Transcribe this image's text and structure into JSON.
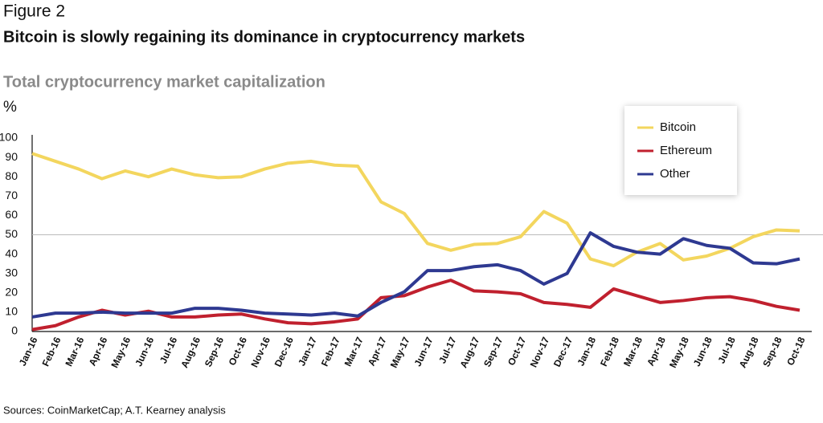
{
  "chart_data": {
    "type": "line",
    "figure_label": "Figure 2",
    "title": "Bitcoin is slowly regaining its dominance in cryptocurrency markets",
    "subtitle": "Total cryptocurrency market capitalization",
    "y_unit": "%",
    "source": "Sources: CoinMarketCap; A.T. Kearney analysis",
    "categories": [
      "Jan-16",
      "Feb-16",
      "Mar-16",
      "Apr-16",
      "May-16",
      "Jun-16",
      "Jul-16",
      "Aug-16",
      "Sep-16",
      "Oct-16",
      "Nov-16",
      "Dec-16",
      "Jan-17",
      "Feb-17",
      "Mar-17",
      "Apr-17",
      "May-17",
      "Jun-17",
      "Jul-17",
      "Aug-17",
      "Sep-17",
      "Oct-17",
      "Nov-17",
      "Dec-17",
      "Jan-18",
      "Feb-18",
      "Mar-18",
      "Apr-18",
      "May-18",
      "Jun-18",
      "Jul-18",
      "Aug-18",
      "Sep-18",
      "Oct-18"
    ],
    "series": [
      {
        "name": "Bitcoin",
        "color": "#f3d65e",
        "values": [
          92,
          88,
          84,
          79,
          83,
          80,
          84,
          81,
          79.5,
          80,
          84,
          87,
          88,
          86,
          85.5,
          67,
          61,
          45.5,
          42,
          45,
          45.5,
          49,
          62,
          56,
          37.5,
          34,
          41,
          45.5,
          37,
          39,
          43,
          49,
          52.5,
          52
        ]
      },
      {
        "name": "Ethereum",
        "color": "#c0202e",
        "values": [
          1,
          3,
          7.5,
          11,
          8.5,
          10.5,
          7.5,
          7.5,
          8.5,
          9,
          6.5,
          4.5,
          4,
          5,
          6.5,
          17.5,
          18.5,
          23,
          26.5,
          21,
          20.5,
          19.5,
          15,
          14,
          12.5,
          22,
          18.5,
          15,
          16,
          17.5,
          18,
          16,
          13,
          11
        ]
      },
      {
        "name": "Other",
        "color": "#2e3991",
        "values": [
          7.5,
          9.5,
          9.5,
          10,
          9.5,
          9.5,
          9.5,
          12,
          12,
          11,
          9.5,
          9,
          8.5,
          9.5,
          8,
          15,
          20.5,
          31.5,
          31.5,
          33.5,
          34.5,
          31.5,
          24.5,
          30,
          51,
          44,
          41,
          40,
          48,
          44.5,
          43,
          35.5,
          35,
          37.5
        ]
      }
    ],
    "ylim": [
      0,
      100
    ],
    "yticks": [
      0,
      10,
      20,
      30,
      40,
      50,
      60,
      70,
      80,
      90,
      100
    ],
    "reference_lines": [
      50
    ],
    "legend": "top-right"
  }
}
